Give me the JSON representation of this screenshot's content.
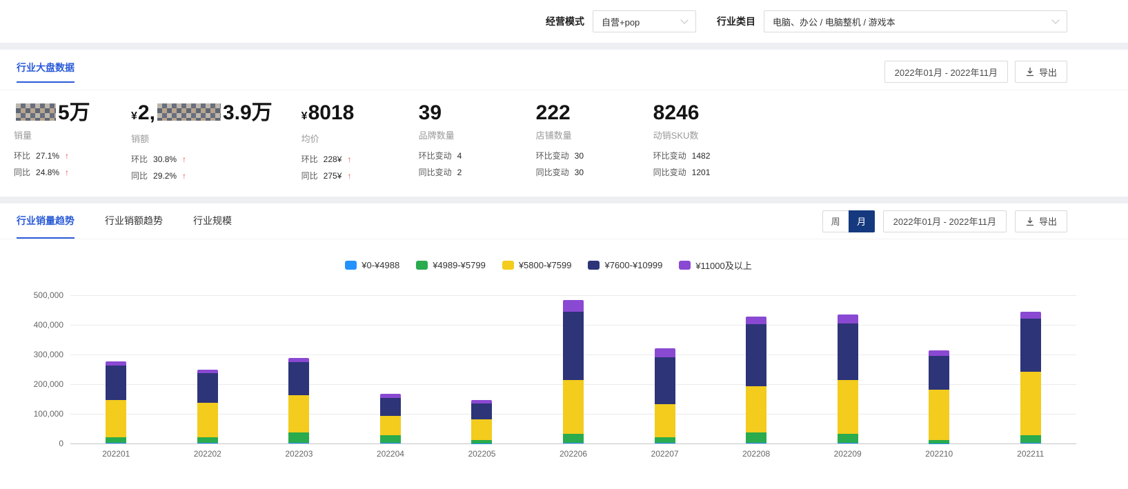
{
  "filters": {
    "mode_label": "经营模式",
    "mode_value": "自营+pop",
    "category_label": "行业类目",
    "category_value": "电脑、办公 / 电脑整机 / 游戏本"
  },
  "overview": {
    "title": "行业大盘数据",
    "date_range": "2022年01月 - 2022年11月",
    "export_label": "导出",
    "kpis": [
      {
        "label": "销量",
        "value_parts": [
          {
            "type": "redacted",
            "size": "sm"
          },
          {
            "type": "text",
            "text": "5万"
          }
        ],
        "metrics": [
          {
            "name": "环比",
            "value": "27.1%",
            "up": true
          },
          {
            "name": "同比",
            "value": "24.8%",
            "up": true
          }
        ]
      },
      {
        "label": "销额",
        "value_parts": [
          {
            "type": "currency",
            "text": "¥"
          },
          {
            "type": "text",
            "text": "2,"
          },
          {
            "type": "redacted",
            "size": "lg"
          },
          {
            "type": "text",
            "text": "3.9万"
          }
        ],
        "metrics": [
          {
            "name": "环比",
            "value": "30.8%",
            "up": true
          },
          {
            "name": "同比",
            "value": "29.2%",
            "up": true
          }
        ]
      },
      {
        "label": "均价",
        "value_parts": [
          {
            "type": "currency",
            "text": "¥"
          },
          {
            "type": "text",
            "text": "8018"
          }
        ],
        "metrics": [
          {
            "name": "环比",
            "value": "228¥",
            "up": true
          },
          {
            "name": "同比",
            "value": "275¥",
            "up": true
          }
        ]
      },
      {
        "label": "品牌数量",
        "value_parts": [
          {
            "type": "text",
            "text": "39"
          }
        ],
        "metrics": [
          {
            "name": "环比变动",
            "value": "4"
          },
          {
            "name": "同比变动",
            "value": "2"
          }
        ]
      },
      {
        "label": "店铺数量",
        "value_parts": [
          {
            "type": "text",
            "text": "222"
          }
        ],
        "metrics": [
          {
            "name": "环比变动",
            "value": "30"
          },
          {
            "name": "同比变动",
            "value": "30"
          }
        ]
      },
      {
        "label": "动销SKU数",
        "value_parts": [
          {
            "type": "text",
            "text": "8246"
          }
        ],
        "metrics": [
          {
            "name": "环比变动",
            "value": "1482"
          },
          {
            "name": "同比变动",
            "value": "1201"
          }
        ]
      }
    ]
  },
  "trend": {
    "tabs": [
      {
        "label": "行业销量趋势",
        "active": true
      },
      {
        "label": "行业销额趋势",
        "active": false
      },
      {
        "label": "行业规模",
        "active": false
      }
    ],
    "period_toggle": [
      {
        "label": "周",
        "active": false
      },
      {
        "label": "月",
        "active": true
      }
    ],
    "date_range": "2022年01月 - 2022年11月",
    "export_label": "导出"
  },
  "chart_data": {
    "type": "bar",
    "stacked": true,
    "categories": [
      "202201",
      "202202",
      "202203",
      "202204",
      "202205",
      "202206",
      "202207",
      "202208",
      "202209",
      "202210",
      "202211"
    ],
    "series": [
      {
        "name": "¥0-¥4988",
        "color": "#2492ff",
        "values": [
          2000,
          2000,
          2000,
          2000,
          1000,
          3000,
          2000,
          2000,
          2000,
          1000,
          2000
        ]
      },
      {
        "name": "¥4989-¥5799",
        "color": "#2aab4d",
        "values": [
          20000,
          20000,
          35000,
          25000,
          10000,
          30000,
          20000,
          35000,
          30000,
          10000,
          25000
        ]
      },
      {
        "name": "¥5800-¥7599",
        "color": "#f3cc1d",
        "values": [
          125000,
          115000,
          125000,
          65000,
          70000,
          180000,
          110000,
          155000,
          183000,
          170000,
          215000
        ]
      },
      {
        "name": "¥7600-¥10999",
        "color": "#2d3478",
        "values": [
          115000,
          100000,
          112000,
          62000,
          55000,
          232000,
          158000,
          210000,
          190000,
          114000,
          178000
        ]
      },
      {
        "name": "¥11000及以上",
        "color": "#8a49d2",
        "values": [
          15000,
          13000,
          15000,
          13000,
          10000,
          38000,
          30000,
          25000,
          30000,
          20000,
          25000
        ]
      }
    ],
    "ylim": [
      0,
      500000
    ],
    "yticks": [
      "500,000",
      "400,000",
      "300,000",
      "200,000",
      "100,000",
      "0"
    ],
    "grid": true,
    "legend_position": "top"
  }
}
